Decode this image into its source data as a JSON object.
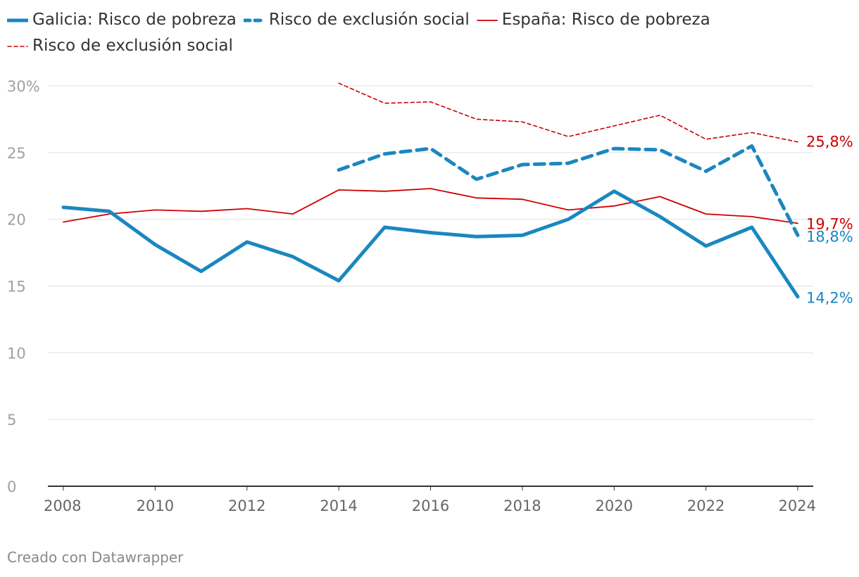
{
  "legend": [
    {
      "label": "Galicia: Risco de pobreza",
      "color": "#1a87c0",
      "style": "solid-thick"
    },
    {
      "label": "Risco de exclusión social",
      "color": "#1a87c0",
      "style": "dashed-thick"
    },
    {
      "label": "España: Risco de pobreza",
      "color": "#cc0000",
      "style": "solid-thin"
    },
    {
      "label": "Risco de exclusión social",
      "color": "#cc0000",
      "style": "dashed-thin"
    }
  ],
  "credit": "Creado con Datawrapper",
  "chart_data": {
    "type": "line",
    "title": "",
    "xlabel": "",
    "ylabel": "",
    "xlim": [
      2008,
      2024
    ],
    "ylim": [
      0,
      30
    ],
    "y_ticks": [
      0,
      5,
      10,
      15,
      20,
      25,
      30
    ],
    "y_tick_labels": [
      "0",
      "5",
      "10",
      "15",
      "20",
      "25",
      "30%"
    ],
    "x_ticks": [
      2008,
      2010,
      2012,
      2014,
      2016,
      2018,
      2020,
      2022,
      2024
    ],
    "x_tick_labels": [
      "2008",
      "2010",
      "2012",
      "2014",
      "2016",
      "2018",
      "2020",
      "2022",
      "2024"
    ],
    "grid": true,
    "series": [
      {
        "name": "Galicia: Risco de pobreza",
        "color": "#1a87c0",
        "style": "solid-thick",
        "x": [
          2008,
          2009,
          2010,
          2011,
          2012,
          2013,
          2014,
          2015,
          2016,
          2017,
          2018,
          2019,
          2020,
          2021,
          2022,
          2023,
          2024
        ],
        "values": [
          20.9,
          20.6,
          18.1,
          16.1,
          18.3,
          17.2,
          15.4,
          19.4,
          19.0,
          18.7,
          18.8,
          20.0,
          22.1,
          20.2,
          18.0,
          19.4,
          14.2
        ],
        "end_label": "14,2%"
      },
      {
        "name": "Galicia: Risco de exclusión social",
        "color": "#1a87c0",
        "style": "dashed-thick",
        "x": [
          2014,
          2015,
          2016,
          2017,
          2018,
          2019,
          2020,
          2021,
          2022,
          2023,
          2024
        ],
        "values": [
          23.7,
          24.9,
          25.3,
          23.0,
          24.1,
          24.2,
          25.3,
          25.2,
          23.6,
          25.5,
          18.8
        ],
        "end_label": "18,8%"
      },
      {
        "name": "España: Risco de pobreza",
        "color": "#cc0000",
        "style": "solid-thin",
        "x": [
          2008,
          2009,
          2010,
          2011,
          2012,
          2013,
          2014,
          2015,
          2016,
          2017,
          2018,
          2019,
          2020,
          2021,
          2022,
          2023,
          2024
        ],
        "values": [
          19.8,
          20.4,
          20.7,
          20.6,
          20.8,
          20.4,
          22.2,
          22.1,
          22.3,
          21.6,
          21.5,
          20.7,
          21.0,
          21.7,
          20.4,
          20.2,
          19.7
        ],
        "end_label": "19,7%"
      },
      {
        "name": "España: Risco de exclusión social",
        "color": "#cc0000",
        "style": "dashed-thin",
        "x": [
          2014,
          2015,
          2016,
          2017,
          2018,
          2019,
          2020,
          2021,
          2022,
          2023,
          2024
        ],
        "values": [
          30.2,
          28.7,
          28.8,
          27.5,
          27.3,
          26.2,
          27.0,
          27.8,
          26.0,
          26.5,
          25.8
        ],
        "end_label": "25,8%"
      }
    ]
  }
}
